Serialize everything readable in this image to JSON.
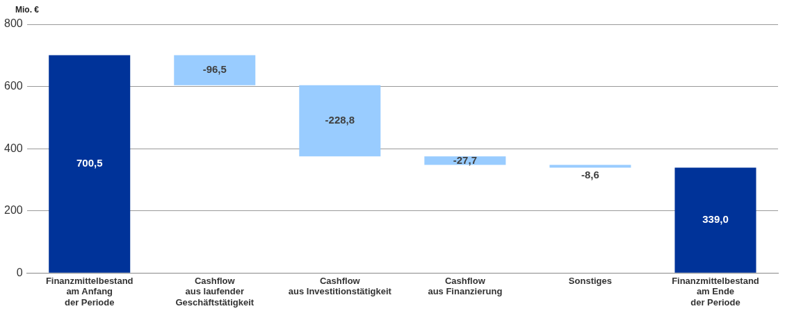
{
  "chart_data": {
    "type": "bar",
    "ylabel": "Mio. €",
    "categories": [
      "Finanzmittelbestand\nam Anfang\nder Periode",
      "Cashflow\naus laufender\nGeschäftstätigkeit",
      "Cashflow\naus Investitionstätigkeit",
      "Cashflow\naus Finanzierung",
      "Sonstiges",
      "Finanzmittelbestand\nam Ende\nder Periode"
    ],
    "values": [
      700.5,
      -96.5,
      -228.8,
      -27.7,
      -8.6,
      339.0
    ],
    "base": [
      0,
      700.5,
      604.0,
      375.2,
      347.5,
      0
    ],
    "colors": [
      "#003399",
      "#99ccff",
      "#99ccff",
      "#99ccff",
      "#99ccff",
      "#003399"
    ],
    "value_labels": [
      "700,5",
      "-96,5",
      "-228,8",
      "-27,7",
      "-8,6",
      "339,0"
    ],
    "ylim": [
      0,
      800
    ],
    "yticks": [
      0,
      200,
      400,
      600,
      800
    ],
    "grid": "y",
    "legend": false
  }
}
